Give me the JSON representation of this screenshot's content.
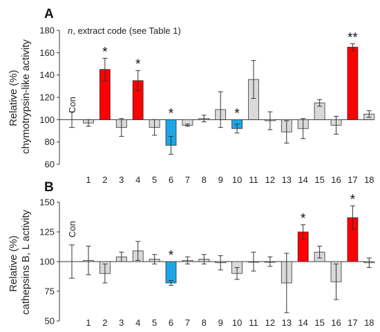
{
  "colors": {
    "gray": "#d9d9d9",
    "red": "#ff0000",
    "blue": "#1ba6e6",
    "stroke": "#333333"
  },
  "chart_data": [
    {
      "type": "bar",
      "panel_label": "A",
      "ylabel_lines": [
        "Relative (%)",
        "chymotrypsin-like activity"
      ],
      "annotation_prefix": "n",
      "annotation_text": ", extract code (see Table 1)",
      "control_label": "Con",
      "control_value": 100,
      "control_error": 7,
      "baseline": 100,
      "ylim": [
        60,
        180
      ],
      "yticks": [
        "60",
        "80",
        "100",
        "120",
        "140",
        "160",
        "180"
      ],
      "categories": [
        "1",
        "2",
        "3",
        "4",
        "5",
        "6",
        "7",
        "8",
        "9",
        "10",
        "11",
        "12",
        "13",
        "14",
        "15",
        "16",
        "17",
        "18"
      ],
      "values": [
        97,
        145,
        93,
        135,
        93,
        77,
        95,
        101,
        109,
        92,
        136,
        99,
        89,
        92,
        115,
        95,
        165,
        105
      ],
      "errors": [
        3,
        10,
        8,
        9,
        7,
        8,
        1,
        3,
        16,
        4,
        17,
        8,
        10,
        9,
        3,
        8,
        3,
        3
      ],
      "colors": [
        "gray",
        "red",
        "gray",
        "red",
        "gray",
        "blue",
        "gray",
        "gray",
        "gray",
        "blue",
        "gray",
        "gray",
        "gray",
        "gray",
        "gray",
        "gray",
        "red",
        "gray"
      ],
      "significance": [
        "",
        "*",
        "",
        "*",
        "",
        "*",
        "",
        "",
        "",
        "*",
        "",
        "",
        "",
        "",
        "",
        "",
        "**",
        ""
      ]
    },
    {
      "type": "bar",
      "panel_label": "B",
      "ylabel_lines": [
        "Relative (%)",
        "cathepsins B, L activity"
      ],
      "control_label": "Con",
      "control_value": 100,
      "control_error": 14,
      "baseline": 100,
      "ylim": [
        50,
        150
      ],
      "yticks": [
        "50",
        "75",
        "100",
        "125",
        "150"
      ],
      "categories": [
        "1",
        "2",
        "3",
        "4",
        "5",
        "6",
        "7",
        "8",
        "9",
        "10",
        "11",
        "12",
        "13",
        "14",
        "15",
        "16",
        "17",
        "18"
      ],
      "values": [
        101,
        90,
        104,
        109,
        102,
        82,
        101,
        102,
        99,
        90,
        100,
        100,
        82,
        125,
        108,
        83,
        137,
        99
      ],
      "errors": [
        12,
        8,
        4,
        8,
        4,
        2,
        3,
        4,
        6,
        5,
        8,
        4,
        25,
        6,
        5,
        15,
        10,
        4
      ],
      "colors": [
        "gray",
        "gray",
        "gray",
        "gray",
        "gray",
        "blue",
        "gray",
        "gray",
        "gray",
        "gray",
        "gray",
        "gray",
        "gray",
        "red",
        "gray",
        "gray",
        "red",
        "gray"
      ],
      "significance": [
        "",
        "",
        "",
        "",
        "",
        "*",
        "",
        "",
        "",
        "",
        "",
        "",
        "",
        "*",
        "",
        "",
        "*",
        ""
      ]
    }
  ]
}
